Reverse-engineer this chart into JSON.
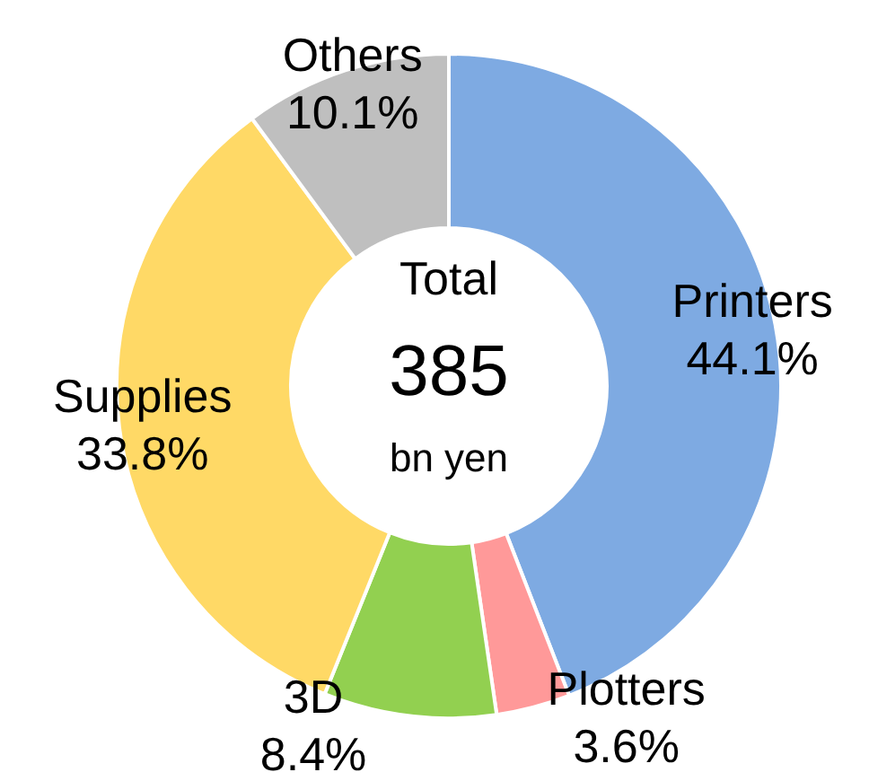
{
  "chart_data": {
    "type": "donut",
    "categories": [
      "Printers",
      "Plotters",
      "3D",
      "Supplies",
      "Others"
    ],
    "values": [
      44.1,
      3.6,
      8.4,
      33.8,
      10.1
    ],
    "value_labels": [
      "44.1%",
      "3.6%",
      "8.4%",
      "33.8%",
      "10.1%"
    ],
    "colors": [
      "#7eaae2",
      "#ff9999",
      "#92d050",
      "#ffd966",
      "#bfbfbf"
    ],
    "annotations": [
      "Total",
      "385",
      "bn yen"
    ],
    "legend": false
  }
}
